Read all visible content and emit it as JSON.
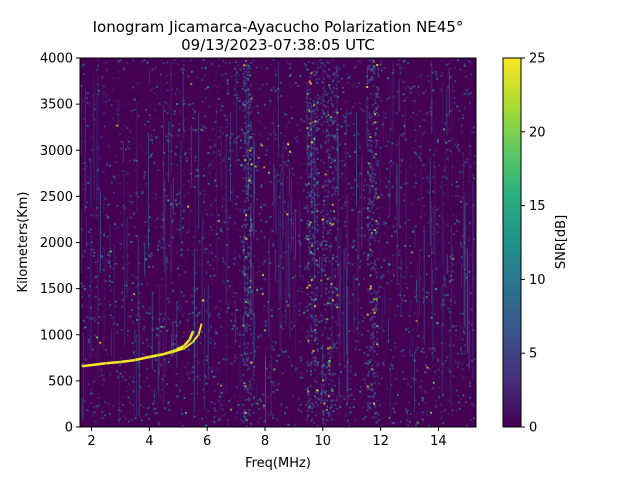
{
  "chart_data": {
    "type": "heatmap",
    "title": "Ionogram Jicamarca-Ayacucho Polarization NE45°",
    "subtitle": "09/13/2023-07:38:05 UTC",
    "xlabel": "Freq(MHz)",
    "ylabel": "Kilometers(Km)",
    "xlim": [
      1.6,
      15.3
    ],
    "ylim": [
      0,
      4000
    ],
    "x_ticks": [
      2,
      4,
      6,
      8,
      10,
      12,
      14
    ],
    "y_ticks": [
      0,
      500,
      1000,
      1500,
      2000,
      2500,
      3000,
      3500,
      4000
    ],
    "colorbar": {
      "label": "SNR[dB]",
      "min": 0,
      "max": 25,
      "ticks": [
        0,
        5,
        10,
        15,
        20,
        25
      ],
      "colormap": "viridis"
    },
    "noise_bands_mhz": [
      [
        7.2,
        7.5
      ],
      [
        9.4,
        9.8
      ],
      [
        9.9,
        10.5
      ],
      [
        11.5,
        11.9
      ]
    ],
    "traces": [
      {
        "points": [
          [
            1.7,
            660
          ],
          [
            2.5,
            690
          ],
          [
            3.0,
            705
          ],
          [
            3.5,
            725
          ],
          [
            4.0,
            760
          ],
          [
            4.5,
            790
          ],
          [
            4.9,
            830
          ],
          [
            5.2,
            880
          ],
          [
            5.4,
            950
          ],
          [
            5.5,
            1030
          ]
        ]
      },
      {
        "points": [
          [
            4.3,
            780
          ],
          [
            4.8,
            810
          ],
          [
            5.2,
            850
          ],
          [
            5.5,
            920
          ],
          [
            5.7,
            1000
          ],
          [
            5.8,
            1110
          ]
        ]
      }
    ]
  }
}
